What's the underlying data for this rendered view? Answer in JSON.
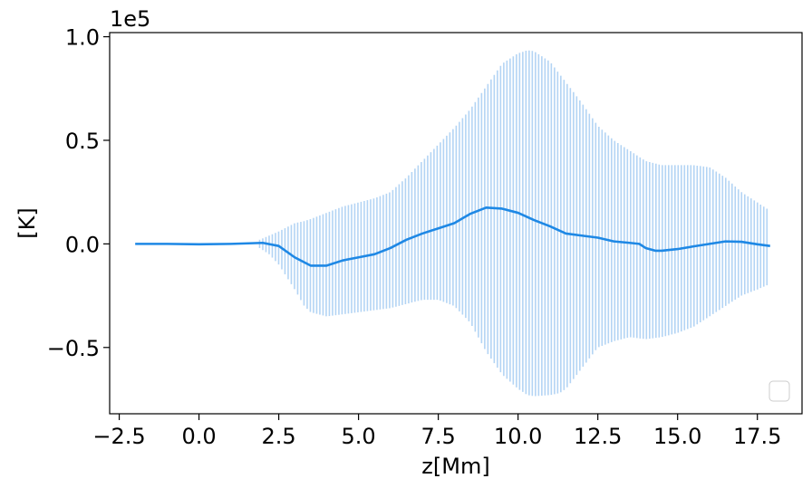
{
  "chart_data": {
    "type": "line",
    "title": "",
    "xlabel": "z[Mm]",
    "ylabel": "[K]",
    "offset_text": "1e5",
    "y_multiplier": 100000,
    "xlim": [
      -2.8,
      18.9
    ],
    "ylim": [
      -0.82,
      1.02
    ],
    "x_ticks": [
      -2.5,
      0.0,
      2.5,
      5.0,
      7.5,
      10.0,
      12.5,
      15.0,
      17.5
    ],
    "x_tick_labels": [
      "−2.5",
      "0.0",
      "2.5",
      "5.0",
      "7.5",
      "10.0",
      "12.5",
      "15.0",
      "17.5"
    ],
    "y_ticks": [
      -0.5,
      0.0,
      0.5,
      1.0
    ],
    "y_tick_labels": [
      "−0.5",
      "0.0",
      "0.5",
      "1.0"
    ],
    "grid": false,
    "legend": {
      "placement": "lower-right",
      "entries": []
    },
    "colors": {
      "line": "#1e88e5",
      "band": "#b3d4f4"
    },
    "mean_line": {
      "x": [
        -2.0,
        -1.0,
        0.0,
        1.0,
        2.0,
        2.5,
        3.0,
        3.5,
        4.0,
        4.5,
        5.0,
        5.5,
        6.0,
        6.5,
        7.0,
        7.5,
        8.0,
        8.5,
        9.0,
        9.5,
        10.0,
        10.5,
        11.0,
        11.5,
        12.0,
        12.5,
        13.0,
        13.5,
        13.8,
        14.0,
        14.3,
        14.5,
        15.0,
        15.5,
        16.0,
        16.5,
        17.0,
        17.5,
        17.9
      ],
      "y": [
        0.0,
        0.0,
        -0.002,
        0.0,
        0.005,
        -0.01,
        -0.065,
        -0.105,
        -0.105,
        -0.08,
        -0.065,
        -0.05,
        -0.02,
        0.02,
        0.05,
        0.075,
        0.1,
        0.145,
        0.175,
        0.17,
        0.15,
        0.115,
        0.085,
        0.05,
        0.04,
        0.03,
        0.012,
        0.005,
        0.0,
        -0.02,
        -0.033,
        -0.033,
        -0.025,
        -0.012,
        0.0,
        0.012,
        0.01,
        -0.002,
        -0.01
      ]
    },
    "error_band": {
      "x": [
        1.9,
        2.2,
        2.5,
        3.0,
        3.3,
        3.5,
        4.0,
        4.5,
        5.0,
        5.5,
        6.0,
        6.5,
        7.0,
        7.5,
        8.0,
        8.5,
        9.0,
        9.5,
        10.0,
        10.3,
        10.5,
        11.0,
        11.3,
        11.5,
        12.0,
        12.5,
        13.0,
        13.5,
        14.0,
        14.5,
        15.0,
        15.5,
        16.0,
        16.5,
        17.0,
        17.5,
        17.8
      ],
      "upper": [
        0.02,
        0.04,
        0.06,
        0.1,
        0.11,
        0.12,
        0.15,
        0.18,
        0.2,
        0.22,
        0.25,
        0.32,
        0.4,
        0.48,
        0.56,
        0.65,
        0.76,
        0.87,
        0.92,
        0.935,
        0.93,
        0.88,
        0.82,
        0.78,
        0.68,
        0.57,
        0.5,
        0.45,
        0.4,
        0.38,
        0.38,
        0.38,
        0.37,
        0.32,
        0.25,
        0.2,
        0.17
      ],
      "lower": [
        -0.02,
        -0.05,
        -0.1,
        -0.22,
        -0.3,
        -0.33,
        -0.35,
        -0.34,
        -0.33,
        -0.32,
        -0.31,
        -0.29,
        -0.27,
        -0.27,
        -0.3,
        -0.38,
        -0.52,
        -0.63,
        -0.7,
        -0.73,
        -0.735,
        -0.73,
        -0.72,
        -0.7,
        -0.6,
        -0.5,
        -0.47,
        -0.45,
        -0.46,
        -0.45,
        -0.43,
        -0.4,
        -0.35,
        -0.3,
        -0.25,
        -0.22,
        -0.2
      ]
    }
  }
}
